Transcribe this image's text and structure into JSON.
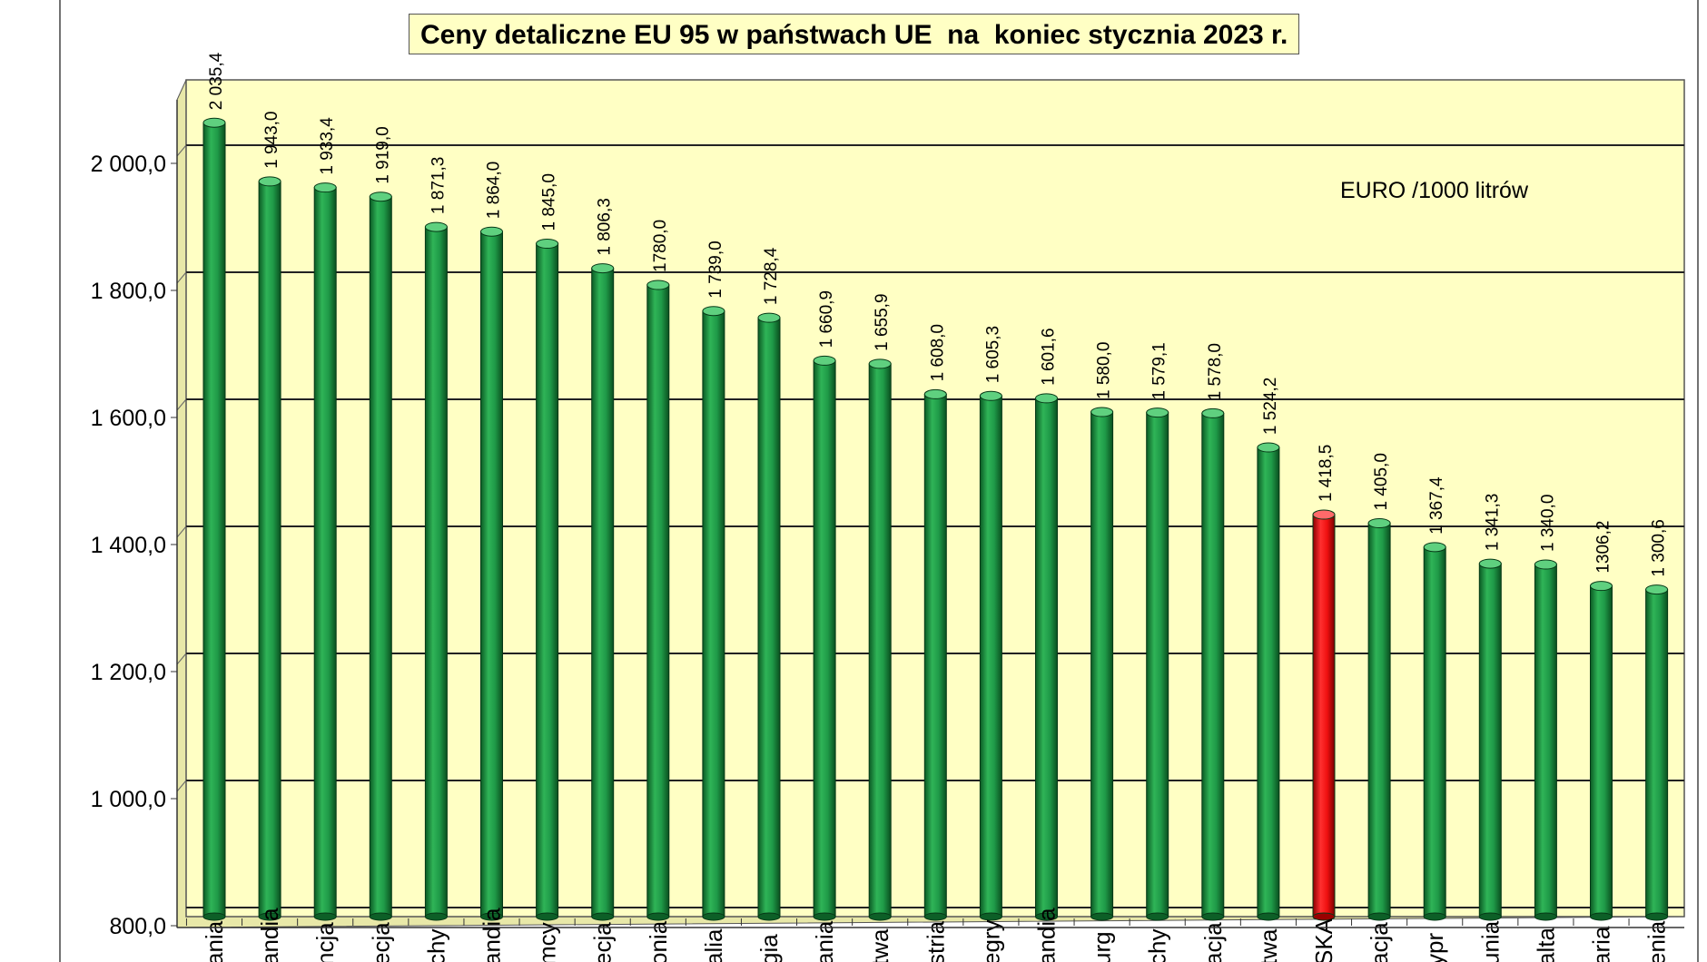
{
  "chart_data": {
    "type": "bar",
    "title": "Ceny detaliczne EU 95 w państwach UE  na  koniec stycznia 2023 r.",
    "unit_label": "EURO /1000 litrów",
    "xlabel": "",
    "ylabel": "",
    "ylim": [
      800,
      2100
    ],
    "yticks": [
      {
        "value": 800,
        "label": "800,0"
      },
      {
        "value": 1000,
        "label": "1 000,0"
      },
      {
        "value": 1200,
        "label": "1 200,0"
      },
      {
        "value": 1400,
        "label": "1 400,0"
      },
      {
        "value": 1600,
        "label": "1 600,0"
      },
      {
        "value": 1800,
        "label": "1 800,0"
      },
      {
        "value": 2000,
        "label": "2 000,0"
      }
    ],
    "grid": true,
    "legend": "none",
    "colors": {
      "plot_background": "#ffffc4",
      "bar": "#1f9a48",
      "bar_highlight": "#f01010",
      "gridline": "#222222"
    },
    "categories": [
      "ania",
      "andia",
      "ncja",
      "ecja",
      "chy",
      "andia",
      "mcy",
      "ecja",
      "onia",
      "alia",
      "gia",
      "ania",
      "twa",
      "stria",
      "egry",
      "andia",
      "urg",
      "chy",
      "acja",
      "twa",
      "SKA",
      "acja",
      "ypr",
      "unia",
      "alta",
      "aria",
      "enia"
    ],
    "values": [
      2035.4,
      1943.0,
      1933.4,
      1919.0,
      1871.3,
      1864.0,
      1845.0,
      1806.3,
      1780.0,
      1739.0,
      1728.4,
      1660.9,
      1655.9,
      1608.0,
      1605.3,
      1601.6,
      1580.0,
      1579.1,
      1578.0,
      1524.2,
      1418.5,
      1405.0,
      1367.4,
      1341.3,
      1340.0,
      1306.2,
      1300.6
    ],
    "value_labels": [
      "2 035,4",
      "1 943,0",
      "1 933,4",
      "1 919,0",
      "1 871,3",
      "1 864,0",
      "1 845,0",
      "1 806,3",
      "1780,0",
      "1 739,0",
      "1 728,4",
      "1 660,9",
      "1 655,9",
      "1 608,0",
      "1 605,3",
      "1 601,6",
      "1 580,0",
      "1 579,1",
      "1 578,0",
      "1 524,2",
      "1 418,5",
      "1 405,0",
      "1 367,4",
      "1 341,3",
      "1 340,0",
      "1306,2",
      "1 300,6"
    ],
    "highlight_index": 20
  }
}
